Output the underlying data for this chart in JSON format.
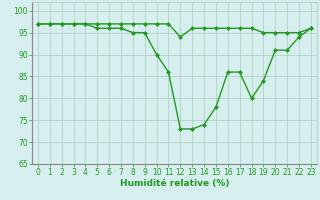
{
  "x": [
    0,
    1,
    2,
    3,
    4,
    5,
    6,
    7,
    8,
    9,
    10,
    11,
    12,
    13,
    14,
    15,
    16,
    17,
    18,
    19,
    20,
    21,
    22,
    23
  ],
  "line1": [
    97,
    97,
    97,
    97,
    97,
    97,
    97,
    97,
    97,
    97,
    97,
    97,
    94,
    96,
    96,
    96,
    96,
    96,
    96,
    95,
    95,
    95,
    95,
    96
  ],
  "line2": [
    97,
    97,
    97,
    97,
    97,
    96,
    96,
    96,
    95,
    95,
    90,
    86,
    73,
    73,
    74,
    78,
    86,
    86,
    80,
    84,
    91,
    91,
    94,
    96
  ],
  "bg_color": "#d6eeee",
  "grid_color": "#aaccbb",
  "line_color": "#229922",
  "markersize": 2.0,
  "linewidth": 1.0,
  "xlabel": "Humidité relative (%)",
  "ylim": [
    65,
    102
  ],
  "xlim": [
    -0.5,
    23.5
  ],
  "yticks": [
    65,
    70,
    75,
    80,
    85,
    90,
    95,
    100
  ],
  "xticks": [
    0,
    1,
    2,
    3,
    4,
    5,
    6,
    7,
    8,
    9,
    10,
    11,
    12,
    13,
    14,
    15,
    16,
    17,
    18,
    19,
    20,
    21,
    22,
    23
  ],
  "font_color": "#229922",
  "tick_fontsize": 5.5,
  "label_fontsize": 6.5
}
